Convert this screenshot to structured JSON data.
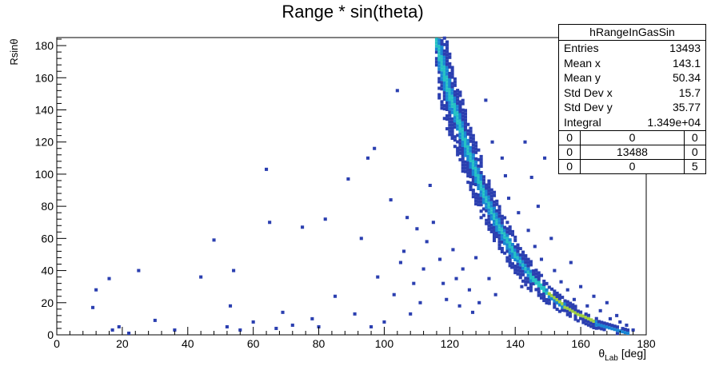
{
  "chart_data": {
    "type": "heatmap",
    "title": "Range * sin(theta)",
    "xlabel": "θLab [deg]",
    "xlabel_main": "θ",
    "xlabel_sub": "Lab",
    "xlabel_unit": "[deg]",
    "ylabel": "Rsinθ",
    "xlim": [
      0,
      180
    ],
    "ylim": [
      0,
      185
    ],
    "x_ticks": [
      "0",
      "20",
      "40",
      "60",
      "80",
      "100",
      "120",
      "140",
      "160",
      "180"
    ],
    "y_ticks": [
      "0",
      "20",
      "40",
      "60",
      "80",
      "100",
      "120",
      "140",
      "160",
      "180"
    ],
    "grid": false,
    "band": [
      {
        "x": 116,
        "y": 182
      },
      {
        "x": 120,
        "y": 150
      },
      {
        "x": 125,
        "y": 118
      },
      {
        "x": 130,
        "y": 90
      },
      {
        "x": 135,
        "y": 68
      },
      {
        "x": 140,
        "y": 50
      },
      {
        "x": 145,
        "y": 36
      },
      {
        "x": 150,
        "y": 26
      },
      {
        "x": 155,
        "y": 18
      },
      {
        "x": 160,
        "y": 12
      },
      {
        "x": 165,
        "y": 7
      },
      {
        "x": 170,
        "y": 4
      },
      {
        "x": 175,
        "y": 1
      }
    ],
    "outliers": [
      {
        "x": 11,
        "y": 17
      },
      {
        "x": 12,
        "y": 28
      },
      {
        "x": 16,
        "y": 35
      },
      {
        "x": 17,
        "y": 3
      },
      {
        "x": 19,
        "y": 5
      },
      {
        "x": 22,
        "y": 1
      },
      {
        "x": 25,
        "y": 40
      },
      {
        "x": 30,
        "y": 9
      },
      {
        "x": 36,
        "y": 3
      },
      {
        "x": 44,
        "y": 36
      },
      {
        "x": 48,
        "y": 59
      },
      {
        "x": 52,
        "y": 5
      },
      {
        "x": 53,
        "y": 18
      },
      {
        "x": 54,
        "y": 40
      },
      {
        "x": 56,
        "y": 3
      },
      {
        "x": 60,
        "y": 8
      },
      {
        "x": 64,
        "y": 103
      },
      {
        "x": 65,
        "y": 70
      },
      {
        "x": 67,
        "y": 4
      },
      {
        "x": 69,
        "y": 14
      },
      {
        "x": 72,
        "y": 6
      },
      {
        "x": 75,
        "y": 67
      },
      {
        "x": 78,
        "y": 10
      },
      {
        "x": 80,
        "y": 5
      },
      {
        "x": 82,
        "y": 72
      },
      {
        "x": 85,
        "y": 24
      },
      {
        "x": 89,
        "y": 97
      },
      {
        "x": 91,
        "y": 13
      },
      {
        "x": 93,
        "y": 60
      },
      {
        "x": 95,
        "y": 110
      },
      {
        "x": 96,
        "y": 5
      },
      {
        "x": 97,
        "y": 116
      },
      {
        "x": 98,
        "y": 36
      },
      {
        "x": 100,
        "y": 8
      },
      {
        "x": 102,
        "y": 84
      },
      {
        "x": 103,
        "y": 25
      },
      {
        "x": 105,
        "y": 45
      },
      {
        "x": 106,
        "y": 52
      },
      {
        "x": 107,
        "y": 73
      },
      {
        "x": 108,
        "y": 13
      },
      {
        "x": 109,
        "y": 32
      },
      {
        "x": 110,
        "y": 66
      },
      {
        "x": 111,
        "y": 20
      },
      {
        "x": 112,
        "y": 41
      },
      {
        "x": 113,
        "y": 58
      },
      {
        "x": 114,
        "y": 93
      },
      {
        "x": 115,
        "y": 70
      },
      {
        "x": 104,
        "y": 152
      },
      {
        "x": 117,
        "y": 47
      },
      {
        "x": 118,
        "y": 32
      },
      {
        "x": 119,
        "y": 22
      },
      {
        "x": 121,
        "y": 53
      },
      {
        "x": 122,
        "y": 35
      },
      {
        "x": 123,
        "y": 18
      },
      {
        "x": 124,
        "y": 41
      },
      {
        "x": 126,
        "y": 28
      },
      {
        "x": 127,
        "y": 14
      },
      {
        "x": 128,
        "y": 48
      },
      {
        "x": 129,
        "y": 20
      },
      {
        "x": 131,
        "y": 146
      },
      {
        "x": 132,
        "y": 35
      },
      {
        "x": 133,
        "y": 120
      },
      {
        "x": 134,
        "y": 25
      },
      {
        "x": 136,
        "y": 110
      },
      {
        "x": 137,
        "y": 99
      },
      {
        "x": 138,
        "y": 85
      },
      {
        "x": 139,
        "y": 42
      },
      {
        "x": 141,
        "y": 76
      },
      {
        "x": 142,
        "y": 30
      },
      {
        "x": 143,
        "y": 120
      },
      {
        "x": 144,
        "y": 65
      },
      {
        "x": 145,
        "y": 98
      },
      {
        "x": 146,
        "y": 55
      },
      {
        "x": 147,
        "y": 80
      },
      {
        "x": 148,
        "y": 47
      },
      {
        "x": 149,
        "y": 110
      },
      {
        "x": 151,
        "y": 60
      },
      {
        "x": 152,
        "y": 40
      },
      {
        "x": 154,
        "y": 33
      },
      {
        "x": 156,
        "y": 28
      },
      {
        "x": 157,
        "y": 45
      },
      {
        "x": 158,
        "y": 22
      },
      {
        "x": 160,
        "y": 30
      },
      {
        "x": 162,
        "y": 18
      },
      {
        "x": 164,
        "y": 24
      },
      {
        "x": 166,
        "y": 15
      },
      {
        "x": 168,
        "y": 20
      },
      {
        "x": 169,
        "y": 10
      },
      {
        "x": 171,
        "y": 12
      },
      {
        "x": 172,
        "y": 8
      },
      {
        "x": 174,
        "y": 6
      },
      {
        "x": 176,
        "y": 3
      }
    ],
    "stats": {
      "name": "hRangeInGasSin",
      "rows": [
        {
          "label": "Entries",
          "value": "13493"
        },
        {
          "label": "Mean x",
          "value": "143.1"
        },
        {
          "label": "Mean y",
          "value": "50.34"
        },
        {
          "label": "Std Dev x",
          "value": "15.7"
        },
        {
          "label": "Std Dev y",
          "value": "35.77"
        },
        {
          "label": "Integral",
          "value": "1.349e+04"
        }
      ],
      "grid": [
        [
          "0",
          "0",
          "0"
        ],
        [
          "0",
          "13488",
          "0"
        ],
        [
          "0",
          "0",
          "5"
        ]
      ]
    },
    "colors": {
      "low": "#2b3fb0",
      "mid": "#1a86d4",
      "high": "#25c1c4",
      "peak": "#a0d040",
      "max": "#f5d220"
    }
  }
}
